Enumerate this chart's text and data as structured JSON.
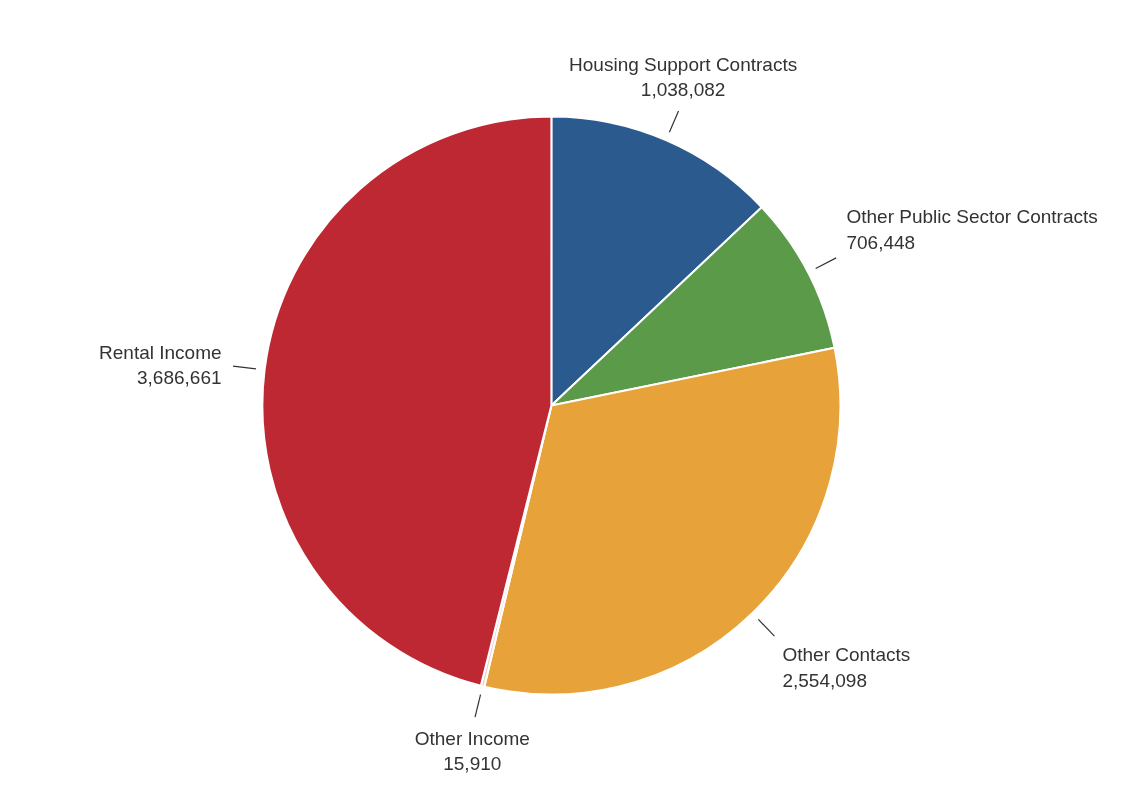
{
  "chart_data": {
    "type": "pie",
    "categories": [
      "Housing Support Contracts",
      "Other Public Sector Contracts",
      "Other Contacts",
      "Other Income",
      "Rental Income"
    ],
    "values": [
      1038082,
      706448,
      2554098,
      15910,
      3686661
    ],
    "value_labels": [
      "1,038,082",
      "706,448",
      "2,554,098",
      "15,910",
      "3,686,661"
    ],
    "colors": [
      "#2b5a8e",
      "#5a9a48",
      "#e8a23a",
      "#f2d0c8",
      "#be2832"
    ]
  }
}
